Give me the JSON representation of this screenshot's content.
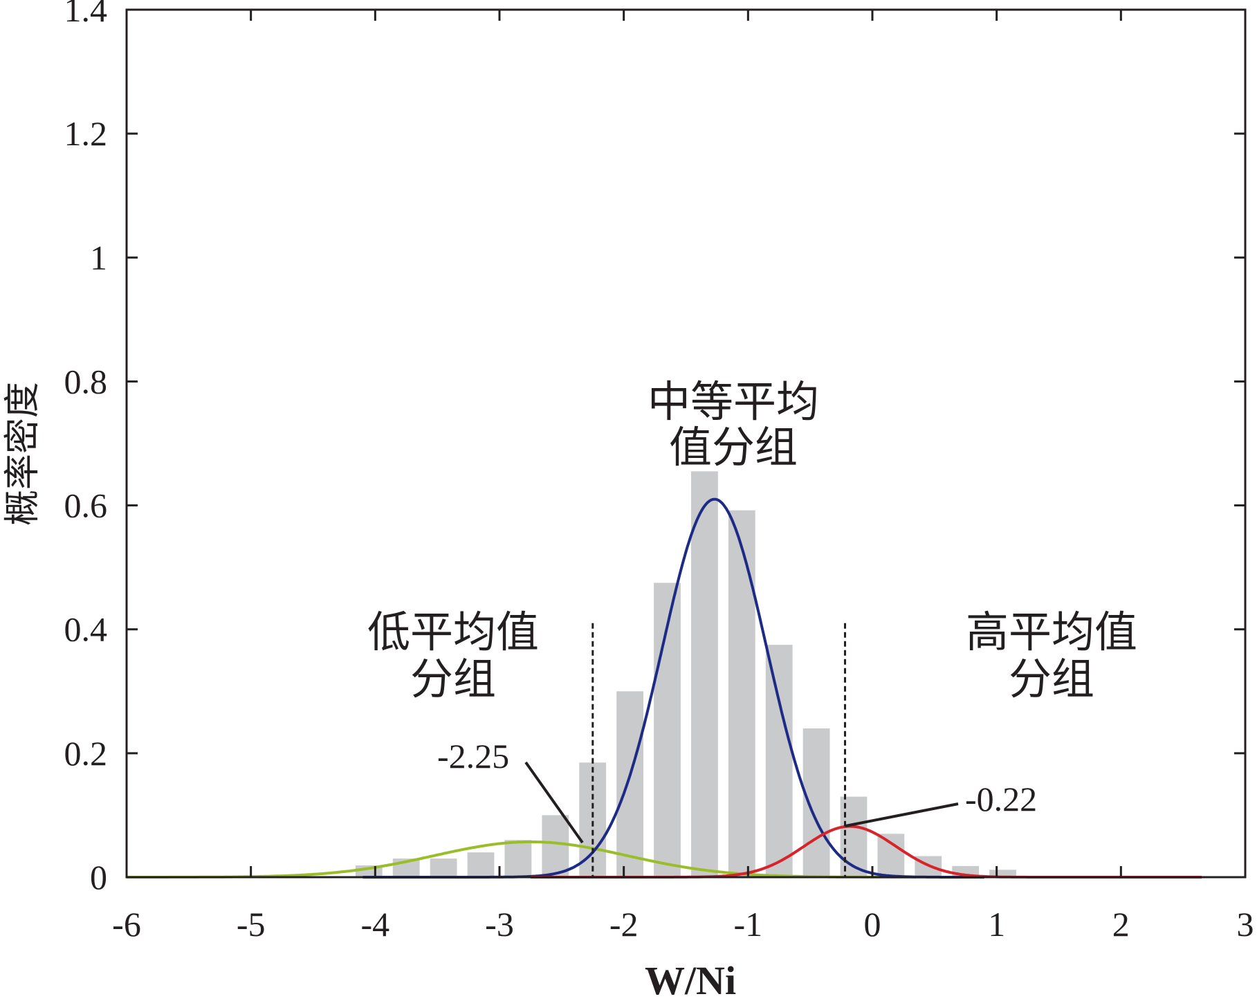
{
  "chart_data": {
    "type": "bar",
    "xlabel": "W/Ni",
    "ylabel": "概率密度",
    "xlim": [
      -6,
      3
    ],
    "ylim": [
      0,
      1.4
    ],
    "xticks": [
      -6,
      -5,
      -4,
      -3,
      -2,
      -1,
      0,
      1,
      2,
      3
    ],
    "xtick_labels": [
      "-6",
      "-5",
      "-4",
      "-3",
      "-2",
      "-1",
      "0",
      "1",
      "2",
      "3"
    ],
    "yticks": [
      0,
      0.2,
      0.4,
      0.6,
      0.8,
      1,
      1.2,
      1.4
    ],
    "ytick_labels": [
      "0",
      "0.2",
      "0.4",
      "0.6",
      "0.8",
      "1",
      "1.2",
      "1.4"
    ],
    "grid": false,
    "histogram": {
      "bin_width": 0.3,
      "bin_centers": [
        -4.05,
        -3.75,
        -3.45,
        -3.15,
        -2.85,
        -2.55,
        -2.25,
        -1.95,
        -1.65,
        -1.35,
        -1.05,
        -0.75,
        -0.45,
        -0.15,
        0.15,
        0.45,
        0.75,
        1.05
      ],
      "values": [
        0.019,
        0.03,
        0.03,
        0.04,
        0.06,
        0.1,
        0.185,
        0.3,
        0.475,
        0.655,
        0.592,
        0.375,
        0.24,
        0.13,
        0.07,
        0.034,
        0.018,
        0.012
      ],
      "color": "#c9cacb"
    },
    "series": [
      {
        "type": "gaussian",
        "mean": -2.75,
        "sd": 0.78,
        "peak": 0.057,
        "x_range": [
          -6,
          0.35
        ],
        "color": "#9abd2a"
      },
      {
        "type": "gaussian",
        "mean": -1.27,
        "sd": 0.42,
        "peak": 0.61,
        "x_range": [
          -4.1,
          0.9
        ],
        "color": "#1d2b86"
      },
      {
        "type": "gaussian",
        "mean": -0.18,
        "sd": 0.37,
        "peak": 0.082,
        "x_range": [
          -2.75,
          2.65
        ],
        "color": "#d7232a"
      }
    ],
    "thresholds": [
      {
        "x": -2.25,
        "label": "-2.25",
        "ymax": 0.41
      },
      {
        "x": -0.22,
        "label": "-0.22",
        "ymax": 0.41
      }
    ],
    "group_labels": [
      {
        "lines": [
          "低平均值",
          "分组"
        ]
      },
      {
        "lines": [
          "中等平均",
          "值分组"
        ]
      },
      {
        "lines": [
          "高平均值",
          "分组"
        ]
      }
    ]
  }
}
